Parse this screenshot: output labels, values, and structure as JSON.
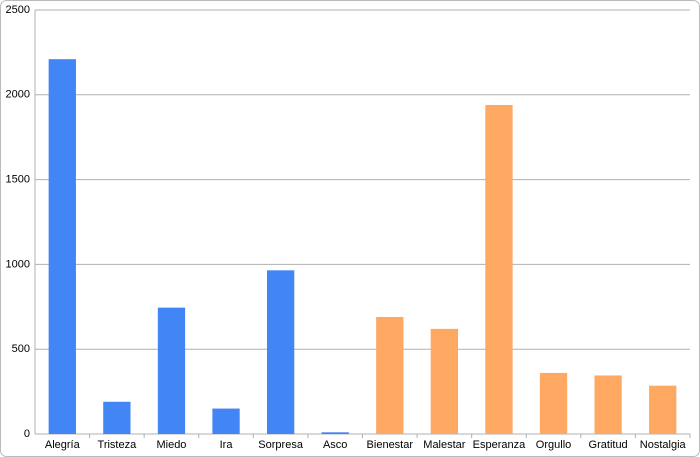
{
  "chart_data": {
    "type": "bar",
    "categories": [
      "Alegría",
      "Tristeza",
      "Miedo",
      "Ira",
      "Sorpresa",
      "Asco",
      "Bienestar",
      "Malestar",
      "Esperanza",
      "Orgullo",
      "Gratitud",
      "Nostalgia"
    ],
    "values": [
      2210,
      190,
      745,
      150,
      965,
      10,
      690,
      620,
      1940,
      360,
      345,
      285
    ],
    "colors": [
      "#4285f4",
      "#4285f4",
      "#4285f4",
      "#4285f4",
      "#4285f4",
      "#4285f4",
      "#ffa861",
      "#ffa861",
      "#ffa861",
      "#ffa861",
      "#ffa861",
      "#ffa861"
    ],
    "ylim": [
      0,
      2500
    ],
    "yticks": [
      0,
      500,
      1000,
      1500,
      2000,
      2500
    ],
    "grid": true
  }
}
